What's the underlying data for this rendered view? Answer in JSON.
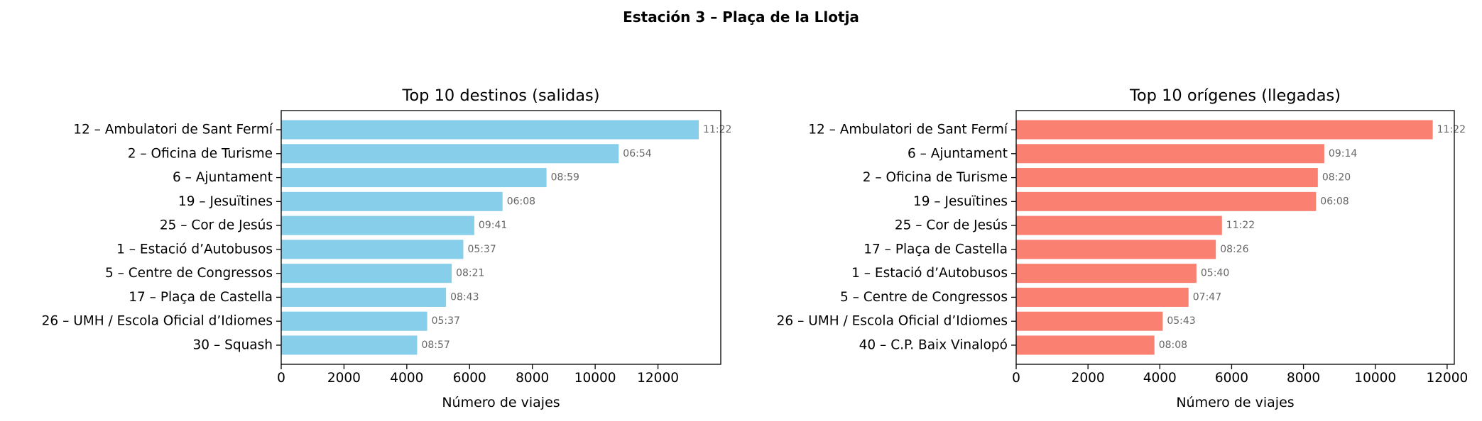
{
  "figure": {
    "suptitle": "Estación 3 – Plaça de la Llotja"
  },
  "chart_data": [
    {
      "type": "bar",
      "orientation": "horizontal",
      "title": "Top 10 destinos (salidas)",
      "xlabel": "Número de viajes",
      "ylabel": "",
      "xlim": [
        0,
        14000
      ],
      "xticks": [
        0,
        2000,
        4000,
        6000,
        8000,
        10000,
        12000
      ],
      "color": "#87CEEB",
      "annotation_color": "#666666",
      "categories": [
        "12 – Ambulatori de Sant Fermí",
        "2 – Oficina de Turisme",
        "6 – Ajuntament",
        "19 – Jesuïtines",
        "25 – Cor de Jesús",
        "1 – Estació d’Autobusos",
        "5 – Centre de Congressos",
        "17 – Plaça de Castella",
        "26 – UMH / Escola Oficial d’Idiomes",
        "30 – Squash"
      ],
      "values": [
        13300,
        10750,
        8450,
        7050,
        6150,
        5800,
        5430,
        5250,
        4650,
        4330
      ],
      "annotations": [
        "11:22",
        "06:54",
        "08:59",
        "06:08",
        "09:41",
        "05:37",
        "08:21",
        "08:43",
        "05:37",
        "08:57"
      ]
    },
    {
      "type": "bar",
      "orientation": "horizontal",
      "title": "Top 10 orígenes (llegadas)",
      "xlabel": "Número de viajes",
      "ylabel": "",
      "xlim": [
        0,
        12200
      ],
      "xticks": [
        0,
        2000,
        4000,
        6000,
        8000,
        10000,
        12000
      ],
      "color": "#FA8072",
      "annotation_color": "#666666",
      "categories": [
        "12 – Ambulatori de Sant Fermí",
        "6 – Ajuntament",
        "2 – Oficina de Turisme",
        "19 – Jesuïtines",
        "25 – Cor de Jesús",
        "17 – Plaça de Castella",
        "1 – Estació d’Autobusos",
        "5 – Centre de Congressos",
        "26 – UMH / Escola Oficial d’Idiomes",
        "40 – C.P. Baix Vinalopó"
      ],
      "values": [
        11600,
        8580,
        8400,
        8350,
        5730,
        5560,
        5020,
        4800,
        4080,
        3850
      ],
      "annotations": [
        "11:22",
        "09:14",
        "08:20",
        "06:08",
        "11:22",
        "08:26",
        "05:40",
        "07:47",
        "05:43",
        "08:08"
      ]
    }
  ]
}
